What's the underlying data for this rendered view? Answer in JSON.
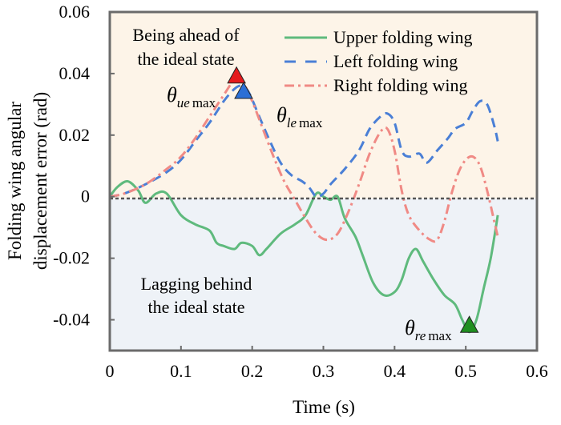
{
  "chart_data": {
    "type": "line",
    "xlabel": "Time (s)",
    "ylabel_line1": "Folding wing angular",
    "ylabel_line2": "displacement error (rad)",
    "xlim": [
      0,
      0.6
    ],
    "ylim": [
      -0.05,
      0.06
    ],
    "x_ticks": [
      "0",
      "0.1",
      "0.2",
      "0.3",
      "0.4",
      "0.5",
      "0.6"
    ],
    "y_ticks": [
      "-0.04",
      "-0.02",
      "0",
      "0.02",
      "0.04",
      "0.06"
    ],
    "regions": {
      "upper_color": "#fdf4e8",
      "lower_color": "#eef2f7",
      "upper_text_1": "Being ahead of",
      "upper_text_2": "the ideal state",
      "lower_text_1": "Lagging behind",
      "lower_text_2": "the ideal state"
    },
    "series": [
      {
        "name": "Upper folding wing",
        "color": "#5fba7d",
        "style": "solid",
        "points": [
          [
            0,
            0
          ],
          [
            0.01,
            0.003
          ],
          [
            0.025,
            0.005
          ],
          [
            0.04,
            0.002
          ],
          [
            0.05,
            -0.002
          ],
          [
            0.065,
            0.001
          ],
          [
            0.08,
            0.001
          ],
          [
            0.1,
            -0.006
          ],
          [
            0.12,
            -0.009
          ],
          [
            0.14,
            -0.011
          ],
          [
            0.15,
            -0.015
          ],
          [
            0.16,
            -0.016
          ],
          [
            0.175,
            -0.017
          ],
          [
            0.185,
            -0.015
          ],
          [
            0.2,
            -0.016
          ],
          [
            0.21,
            -0.019
          ],
          [
            0.22,
            -0.017
          ],
          [
            0.24,
            -0.012
          ],
          [
            0.26,
            -0.009
          ],
          [
            0.275,
            -0.006
          ],
          [
            0.29,
            0.001
          ],
          [
            0.3,
            0.0
          ],
          [
            0.31,
            -0.001
          ],
          [
            0.32,
            0.0
          ],
          [
            0.33,
            -0.007
          ],
          [
            0.345,
            -0.013
          ],
          [
            0.355,
            -0.019
          ],
          [
            0.37,
            -0.028
          ],
          [
            0.385,
            -0.032
          ],
          [
            0.4,
            -0.031
          ],
          [
            0.41,
            -0.027
          ],
          [
            0.42,
            -0.02
          ],
          [
            0.43,
            -0.017
          ],
          [
            0.44,
            -0.021
          ],
          [
            0.455,
            -0.027
          ],
          [
            0.47,
            -0.032
          ],
          [
            0.485,
            -0.035
          ],
          [
            0.495,
            -0.04
          ],
          [
            0.505,
            -0.044
          ],
          [
            0.515,
            -0.04
          ],
          [
            0.525,
            -0.03
          ],
          [
            0.535,
            -0.02
          ],
          [
            0.545,
            -0.006
          ]
        ]
      },
      {
        "name": "Left folding wing",
        "color": "#4a7fd6",
        "style": "dash",
        "points": [
          [
            0,
            0
          ],
          [
            0.02,
            0.001
          ],
          [
            0.05,
            0.004
          ],
          [
            0.08,
            0.008
          ],
          [
            0.1,
            0.012
          ],
          [
            0.12,
            0.018
          ],
          [
            0.14,
            0.024
          ],
          [
            0.16,
            0.031
          ],
          [
            0.175,
            0.035
          ],
          [
            0.185,
            0.036
          ],
          [
            0.195,
            0.034
          ],
          [
            0.21,
            0.026
          ],
          [
            0.225,
            0.018
          ],
          [
            0.24,
            0.011
          ],
          [
            0.255,
            0.007
          ],
          [
            0.27,
            0.005
          ],
          [
            0.28,
            0.003
          ],
          [
            0.29,
            0.0
          ],
          [
            0.3,
            0.001
          ],
          [
            0.31,
            0.004
          ],
          [
            0.33,
            0.009
          ],
          [
            0.35,
            0.015
          ],
          [
            0.365,
            0.022
          ],
          [
            0.38,
            0.026
          ],
          [
            0.39,
            0.027
          ],
          [
            0.4,
            0.024
          ],
          [
            0.41,
            0.015
          ],
          [
            0.42,
            0.013
          ],
          [
            0.435,
            0.014
          ],
          [
            0.445,
            0.011
          ],
          [
            0.46,
            0.015
          ],
          [
            0.475,
            0.019
          ],
          [
            0.485,
            0.022
          ],
          [
            0.5,
            0.024
          ],
          [
            0.51,
            0.028
          ],
          [
            0.52,
            0.031
          ],
          [
            0.53,
            0.03
          ],
          [
            0.54,
            0.023
          ],
          [
            0.545,
            0.018
          ]
        ]
      },
      {
        "name": "Right folding wing",
        "color": "#f08a85",
        "style": "dashdot",
        "points": [
          [
            0,
            0
          ],
          [
            0.02,
            0.001
          ],
          [
            0.05,
            0.004
          ],
          [
            0.08,
            0.009
          ],
          [
            0.1,
            0.013
          ],
          [
            0.12,
            0.019
          ],
          [
            0.14,
            0.026
          ],
          [
            0.16,
            0.033
          ],
          [
            0.175,
            0.038
          ],
          [
            0.185,
            0.038
          ],
          [
            0.2,
            0.031
          ],
          [
            0.215,
            0.022
          ],
          [
            0.23,
            0.013
          ],
          [
            0.245,
            0.005
          ],
          [
            0.26,
            -0.001
          ],
          [
            0.275,
            -0.007
          ],
          [
            0.29,
            -0.012
          ],
          [
            0.305,
            -0.014
          ],
          [
            0.32,
            -0.012
          ],
          [
            0.335,
            -0.005
          ],
          [
            0.35,
            0.004
          ],
          [
            0.365,
            0.014
          ],
          [
            0.38,
            0.021
          ],
          [
            0.39,
            0.022
          ],
          [
            0.4,
            0.015
          ],
          [
            0.41,
            0.002
          ],
          [
            0.42,
            -0.006
          ],
          [
            0.435,
            -0.011
          ],
          [
            0.45,
            -0.014
          ],
          [
            0.46,
            -0.014
          ],
          [
            0.47,
            -0.008
          ],
          [
            0.48,
            0.001
          ],
          [
            0.49,
            0.008
          ],
          [
            0.5,
            0.012
          ],
          [
            0.51,
            0.013
          ],
          [
            0.52,
            0.01
          ],
          [
            0.53,
            0.002
          ],
          [
            0.54,
            -0.008
          ],
          [
            0.545,
            -0.013
          ]
        ]
      }
    ],
    "markers": [
      {
        "label": "θ",
        "sub": "ue",
        "subn": "max",
        "x": 0.178,
        "y": 0.039,
        "color": "#e41a1c"
      },
      {
        "label": "θ",
        "sub": "le",
        "subn": "max",
        "x": 0.188,
        "y": 0.034,
        "color": "#2b6fd6"
      },
      {
        "label": "θ",
        "sub": "re",
        "subn": "max",
        "x": 0.505,
        "y": -0.042,
        "color": "#1f8f1f"
      }
    ]
  }
}
